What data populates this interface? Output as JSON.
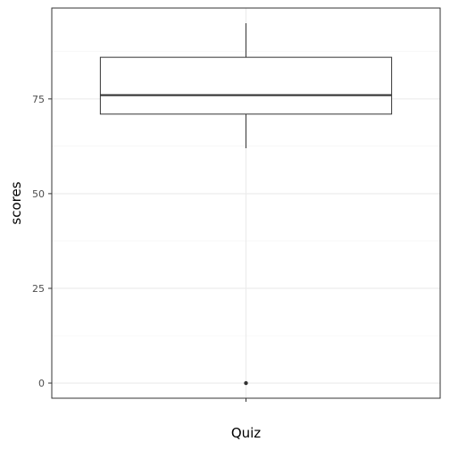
{
  "chart_data": {
    "type": "boxplot",
    "title": "",
    "xlabel": "",
    "ylabel": "scores",
    "ylim": [
      -4,
      99
    ],
    "y_ticks": [
      0,
      25,
      50,
      75
    ],
    "y_tick_labels": [
      "0",
      "25",
      "50",
      "75"
    ],
    "categories": [
      "Quiz"
    ],
    "boxes": [
      {
        "category": "Quiz",
        "whisker_low": 62,
        "q1": 71,
        "median": 76,
        "q3": 86,
        "whisker_high": 95,
        "outliers": [
          0
        ]
      }
    ],
    "grid": true,
    "legend": "none",
    "colors": {
      "box_fill": "#ffffff",
      "box_stroke": "#333333",
      "grid": "#ebebeb",
      "background": "#ffffff"
    }
  }
}
